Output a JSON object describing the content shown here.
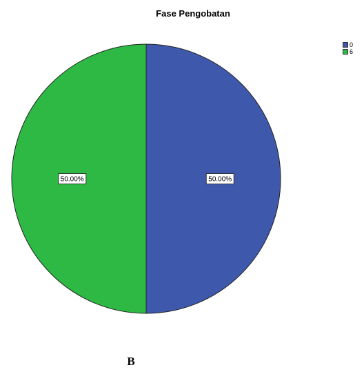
{
  "chart_data": {
    "type": "pie",
    "title": "Fase Pengobatan",
    "categories": [
      "0",
      "6"
    ],
    "values": [
      50.0,
      50.0
    ],
    "data_labels": [
      "50.00%",
      "50.00%"
    ],
    "colors": [
      "#3e58ac",
      "#2eb944"
    ],
    "legend_position": "top-right"
  },
  "figure": {
    "panel_label": "B"
  }
}
